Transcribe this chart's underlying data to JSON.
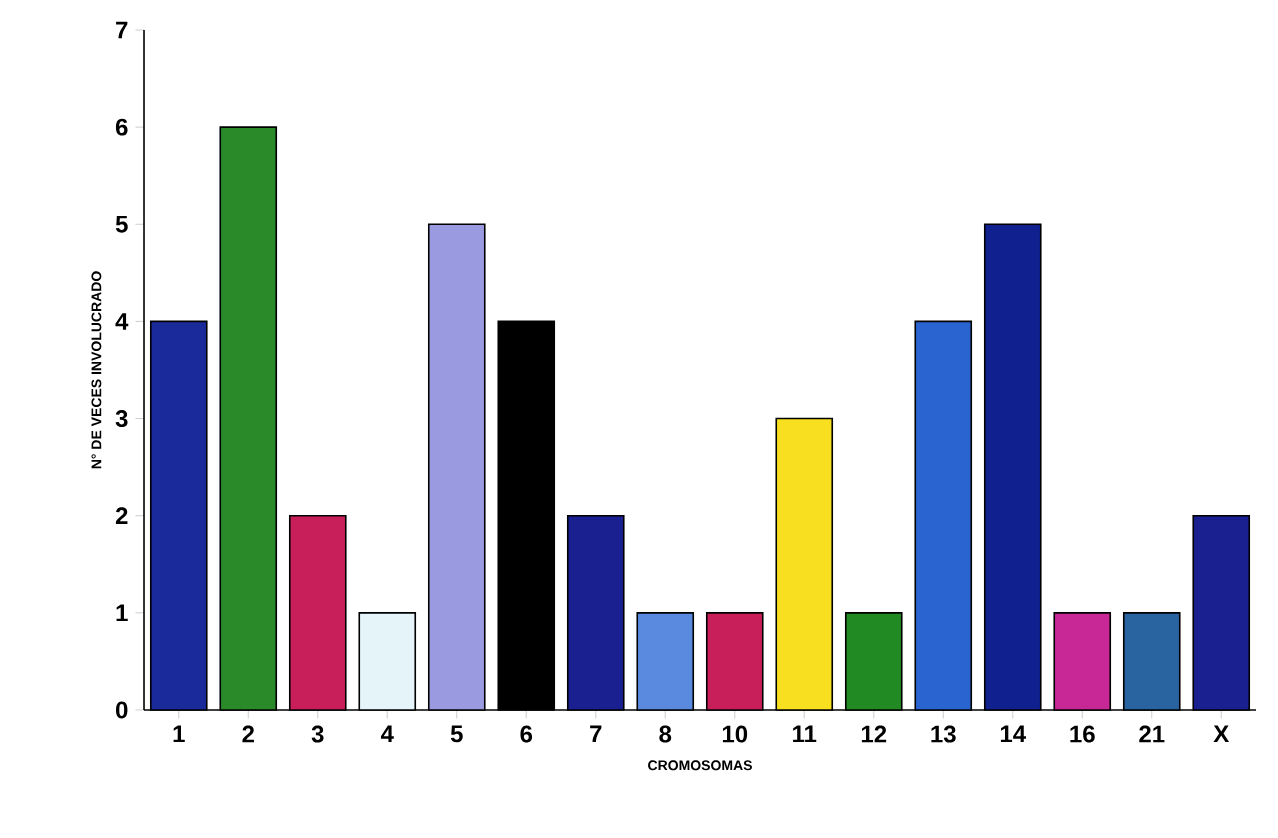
{
  "chart_data": {
    "type": "bar",
    "xlabel": "CROMOSOMAS",
    "ylabel": "N° DE VECES INVOLUCRADO",
    "categories": [
      "1",
      "2",
      "3",
      "4",
      "5",
      "6",
      "7",
      "8",
      "10",
      "11",
      "12",
      "13",
      "14",
      "16",
      "21",
      "X"
    ],
    "values": [
      4,
      6,
      2,
      1,
      5,
      4,
      2,
      1,
      1,
      3,
      1,
      4,
      5,
      1,
      1,
      2
    ],
    "colors": [
      "#1a2a9a",
      "#2a8a2a",
      "#c81e5a",
      "#e4f4f8",
      "#9a9ae0",
      "#000000",
      "#1a2090",
      "#5a8ae0",
      "#c81e5a",
      "#f8e020",
      "#228a22",
      "#2a64d0",
      "#10208e",
      "#c82896",
      "#2a64a0",
      "#1a2090"
    ],
    "ylim": [
      0,
      7
    ],
    "yticks": [
      0,
      1,
      2,
      3,
      4,
      5,
      6,
      7
    ],
    "grid": false
  }
}
